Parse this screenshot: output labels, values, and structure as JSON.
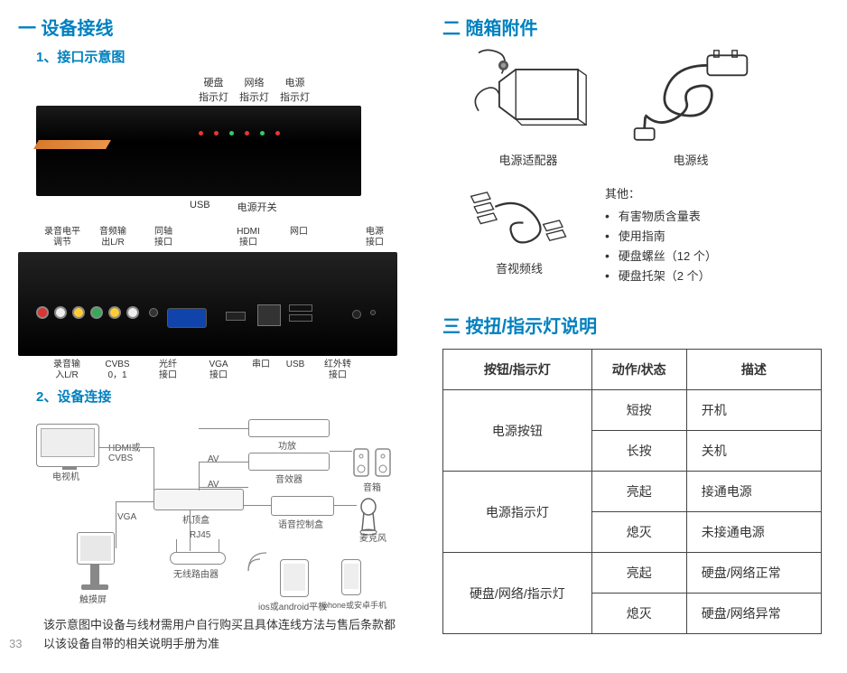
{
  "page_number": "33",
  "section1": {
    "title": "一  设备接线",
    "sub1": "1、接口示意图",
    "sub2": "2、设备连接",
    "front_top_labels": [
      "硬盘\n指示灯",
      "网络\n指示灯",
      "电源\n指示灯"
    ],
    "front_bot_labels": [
      "USB",
      "电源开关"
    ],
    "back_top_labels": [
      "录音电平\n调节",
      "音频输\n出L/R",
      "同轴\n接口",
      "HDMI\n接口",
      "网口",
      "电源\n接口"
    ],
    "back_bot_labels": [
      "录音输\n入L/R",
      "CVBS\n0，1",
      "光纤\n接口",
      "VGA\n接口",
      "串口",
      "USB",
      "红外转\n接口"
    ],
    "conn_labels": {
      "tv": "电视机",
      "hdmi_cvbs": "HDMI或\nCVBS",
      "av1": "AV",
      "av2": "AV",
      "amp": "功放",
      "proc": "音效器",
      "console": "语音控制盒",
      "stb": "机顶盒",
      "vga": "VGA",
      "rj45": "RJ45",
      "router": "无线路由器",
      "touch": "触摸屏",
      "pad": "ios或android平板",
      "phone": "iphone或安卓手机",
      "speaker": "音箱",
      "mic": "麦克风"
    },
    "note": "该示意图中设备与线材需用户自行购买且具体连线方法与售后条款都以该设备自带的相关说明手册为准"
  },
  "section2": {
    "title": "二  随箱附件",
    "acc1": "电源适配器",
    "acc2": "电源线",
    "acc3": "音视频线",
    "other_title": "其他：",
    "other_items": [
      "有害物质含量表",
      "使用指南",
      "硬盘螺丝（12 个）",
      "硬盘托架（2 个）"
    ]
  },
  "section3": {
    "title": "三  按扭/指示灯说明",
    "headers": [
      "按钮/指示灯",
      "动作/状态",
      "描述"
    ],
    "rows": [
      {
        "name": "电源按钮",
        "span": 2,
        "cells": [
          [
            "短按",
            "开机"
          ],
          [
            "长按",
            "关机"
          ]
        ]
      },
      {
        "name": "电源指示灯",
        "span": 2,
        "cells": [
          [
            "亮起",
            "接通电源"
          ],
          [
            "熄灭",
            "未接通电源"
          ]
        ]
      },
      {
        "name": "硬盘/网络/指示灯",
        "span": 2,
        "cells": [
          [
            "亮起",
            "硬盘/网络正常"
          ],
          [
            "熄灭",
            "硬盘/网络异常"
          ]
        ]
      }
    ]
  },
  "colors": {
    "heading": "#0080bf",
    "border": "#444444",
    "text": "#333333"
  }
}
